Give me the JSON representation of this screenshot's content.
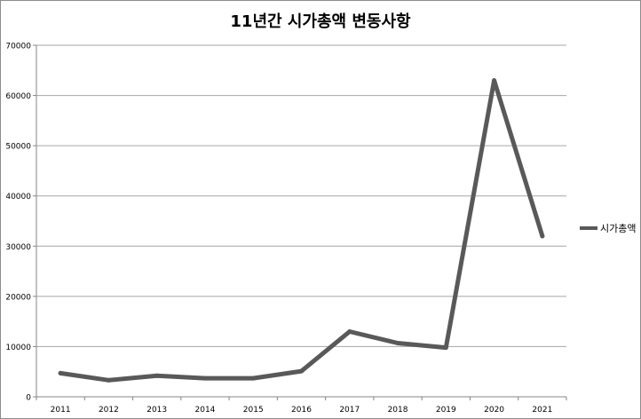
{
  "chart_data": {
    "type": "line",
    "title": "11년간 시가총액 변동사항",
    "xlabel": "",
    "ylabel": "",
    "categories": [
      "2011",
      "2012",
      "2013",
      "2014",
      "2015",
      "2016",
      "2017",
      "2018",
      "2019",
      "2020",
      "2021"
    ],
    "series": [
      {
        "name": "시가총액",
        "color": "#595959",
        "values": [
          4700,
          3300,
          4200,
          3700,
          3700,
          5100,
          13000,
          10700,
          9800,
          63000,
          32000
        ]
      }
    ],
    "ylim": [
      0,
      70000
    ],
    "yticks": [
      "0",
      "10000",
      "20000",
      "30000",
      "40000",
      "50000",
      "60000",
      "70000"
    ],
    "grid": true,
    "legend_position": "right"
  }
}
